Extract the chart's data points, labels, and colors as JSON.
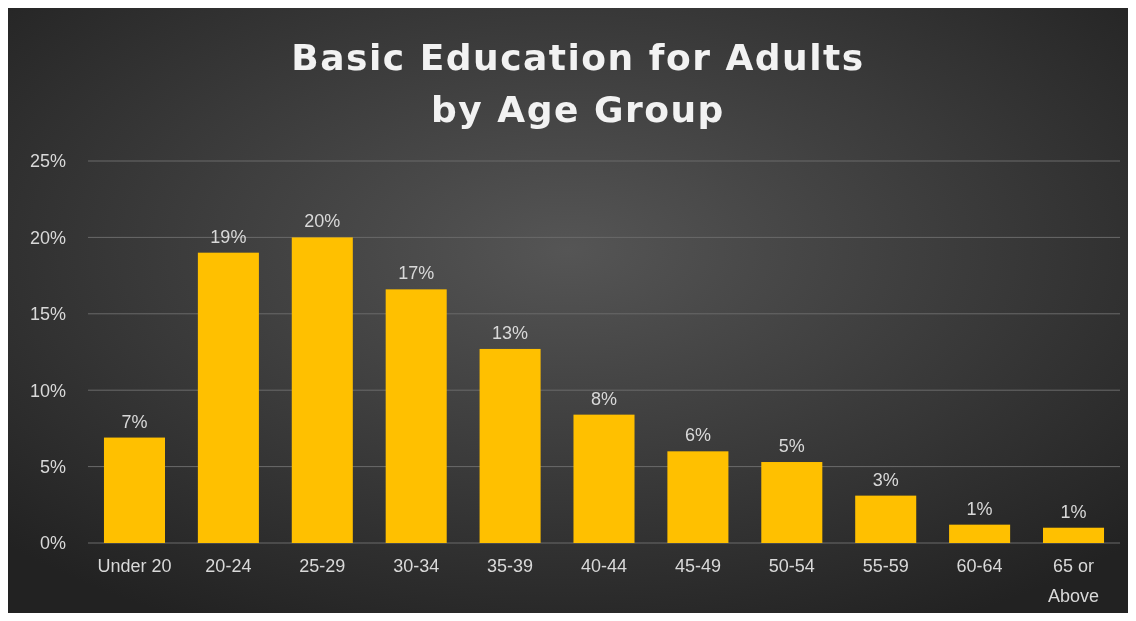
{
  "chart_data": {
    "type": "bar",
    "title": "Basic Education for Adults\nby Age Group",
    "categories": [
      "Under 20",
      "20-24",
      "25-29",
      "30-34",
      "35-39",
      "40-44",
      "45-49",
      "50-54",
      "55-59",
      "60-64",
      "65 or Above"
    ],
    "values": [
      6.9,
      19.0,
      20.0,
      16.6,
      12.7,
      8.4,
      6.0,
      5.3,
      3.1,
      1.2,
      1.0
    ],
    "value_labels": [
      "7%",
      "19%",
      "20%",
      "17%",
      "13%",
      "8%",
      "6%",
      "5%",
      "3%",
      "1%",
      "1%"
    ],
    "color": "#ffc000",
    "ylim": [
      0,
      25
    ],
    "yticks": [
      {
        "value": 0,
        "label": "0%"
      },
      {
        "value": 5,
        "label": "5%"
      },
      {
        "value": 10,
        "label": "10%"
      },
      {
        "value": 15,
        "label": "15%"
      },
      {
        "value": 20,
        "label": "20%"
      },
      {
        "value": 25,
        "label": "25%"
      }
    ],
    "grid": "y"
  }
}
